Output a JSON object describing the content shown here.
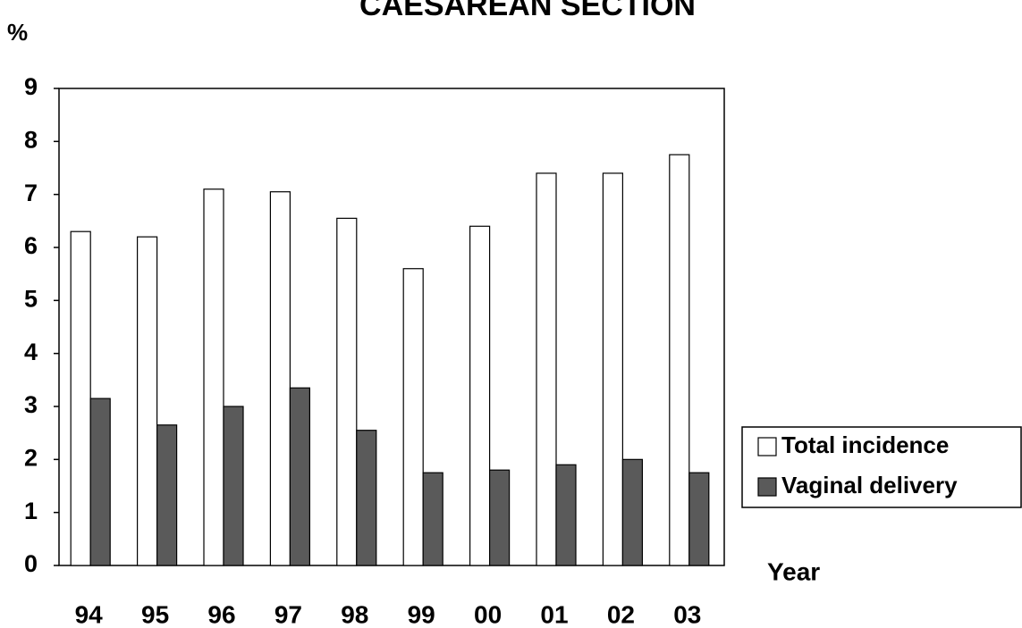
{
  "chart_data": {
    "type": "bar",
    "title": "CAESAREAN SECTION",
    "y_label": "%",
    "x_label": "Year",
    "categories": [
      "94",
      "95",
      "96",
      "97",
      "98",
      "99",
      "00",
      "01",
      "02",
      "03"
    ],
    "series": [
      {
        "name": "Total incidence",
        "color": "#ffffff",
        "values": [
          6.3,
          6.2,
          7.1,
          7.05,
          6.55,
          5.6,
          6.4,
          7.4,
          7.4,
          7.75
        ]
      },
      {
        "name": "Vaginal delivery",
        "color": "#5a5a5a",
        "values": [
          3.15,
          2.65,
          3.0,
          3.35,
          2.55,
          1.75,
          1.8,
          1.9,
          2.0,
          1.75
        ]
      }
    ],
    "ylim": [
      0,
      9
    ],
    "yticks": [
      0,
      1,
      2,
      3,
      4,
      5,
      6,
      7,
      8,
      9
    ],
    "grid": false,
    "legend": "right"
  }
}
